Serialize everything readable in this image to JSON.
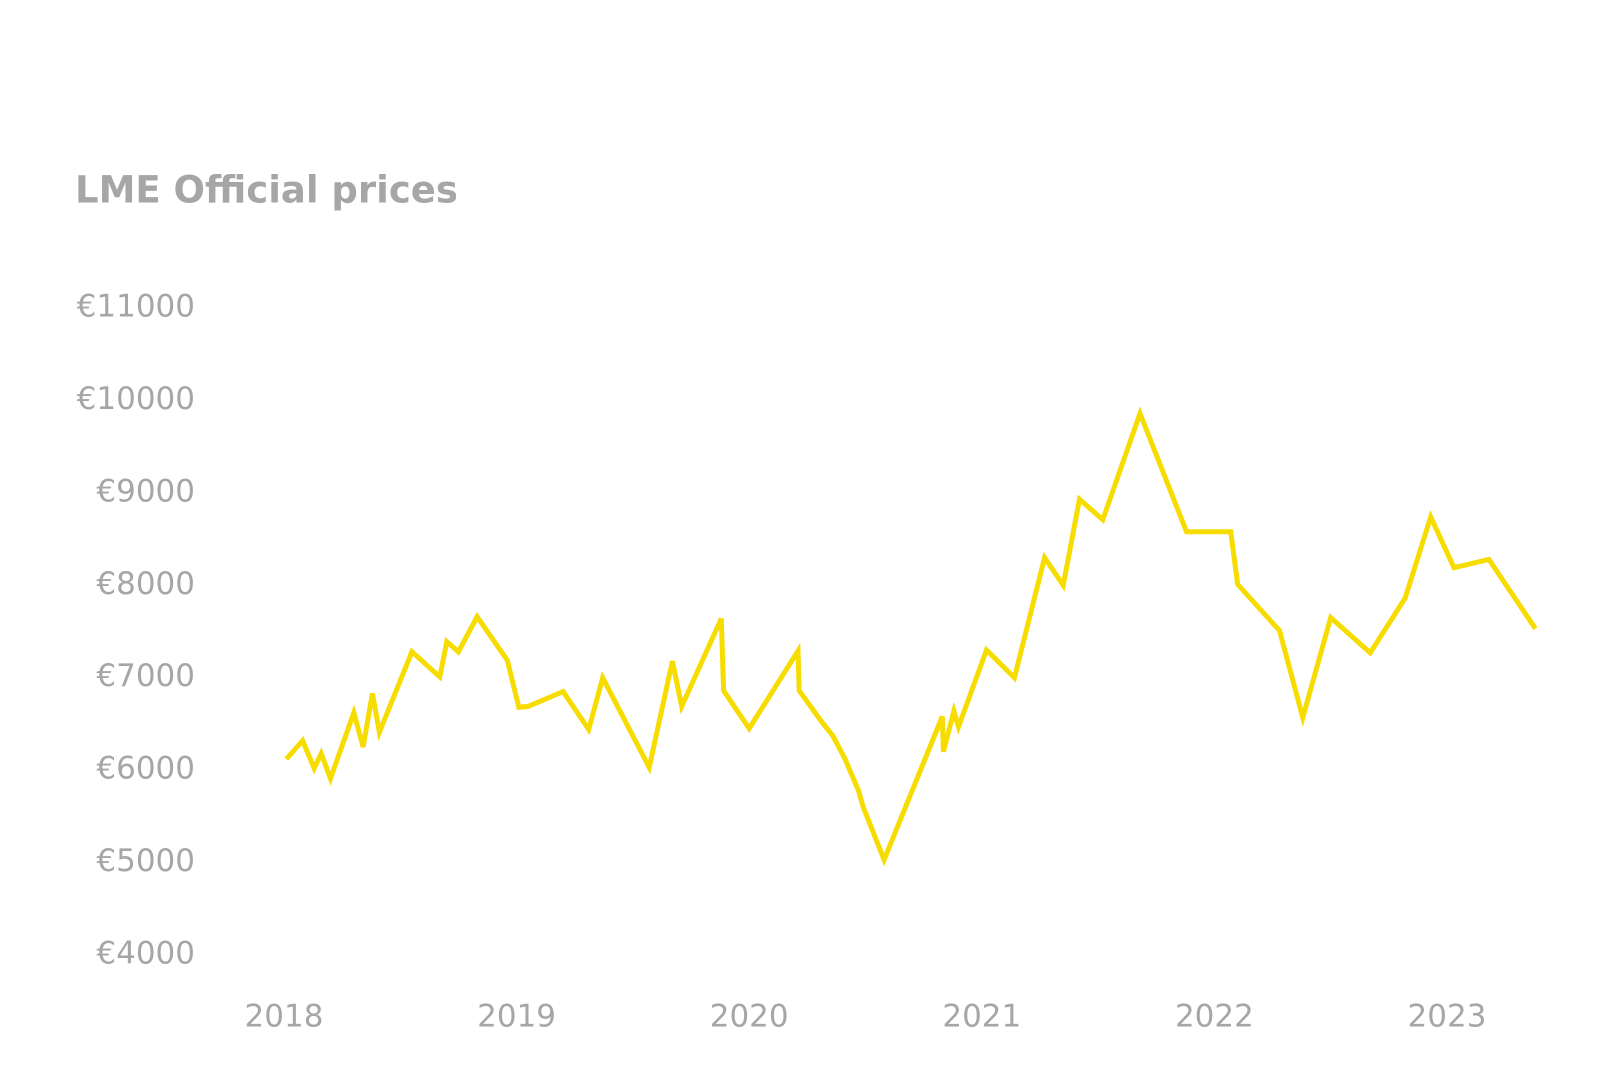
{
  "chart_data": {
    "type": "line",
    "title": "LME Official prices",
    "x": [
      2018.01,
      2018.08,
      2018.13,
      2018.16,
      2018.2,
      2018.3,
      2018.34,
      2018.38,
      2018.41,
      2018.55,
      2018.67,
      2018.7,
      2018.75,
      2018.83,
      2018.96,
      2019.01,
      2019.05,
      2019.2,
      2019.31,
      2019.37,
      2019.57,
      2019.67,
      2019.71,
      2019.88,
      2019.89,
      2020.0,
      2020.21,
      2020.215,
      2020.31,
      2020.36,
      2020.41,
      2020.47,
      2020.49,
      2020.58,
      2020.83,
      2020.835,
      2020.88,
      2020.9,
      2021.02,
      2021.14,
      2021.27,
      2021.35,
      2021.42,
      2021.52,
      2021.68,
      2021.88,
      2022.07,
      2022.1,
      2022.28,
      2022.38,
      2022.5,
      2022.67,
      2022.82,
      2022.93,
      2023.03,
      2023.18,
      2023.38
    ],
    "series": [
      {
        "name": "LME Official prices",
        "color": "#f7dc00",
        "values": [
          6120,
          6320,
          6020,
          6180,
          5910,
          6620,
          6250,
          6830,
          6410,
          7280,
          7010,
          7390,
          7280,
          7660,
          7190,
          6680,
          6690,
          6850,
          6440,
          7000,
          6030,
          7180,
          6690,
          7640,
          6860,
          6450,
          7290,
          6860,
          6530,
          6370,
          6130,
          5780,
          5600,
          5030,
          6580,
          6200,
          6640,
          6470,
          7300,
          7000,
          8300,
          8000,
          8930,
          8710,
          9860,
          8580,
          8580,
          8010,
          7510,
          6570,
          7650,
          7270,
          7860,
          8740,
          8190,
          8280,
          7530
        ]
      }
    ],
    "xlim": [
      2018,
      2023
    ],
    "xticks": [
      2018,
      2019,
      2020,
      2021,
      2022,
      2023
    ],
    "ylim": [
      4000,
      11000
    ],
    "yticks": [
      {
        "value": 4000,
        "label": "€4000"
      },
      {
        "value": 5000,
        "label": "€5000"
      },
      {
        "value": 6000,
        "label": "€6000"
      },
      {
        "value": 7000,
        "label": "€7000"
      },
      {
        "value": 8000,
        "label": "€8000"
      },
      {
        "value": 9000,
        "label": "€9000"
      },
      {
        "value": 10000,
        "label": "€10000"
      },
      {
        "value": 11000,
        "label": "€11000"
      }
    ],
    "grid": false
  }
}
